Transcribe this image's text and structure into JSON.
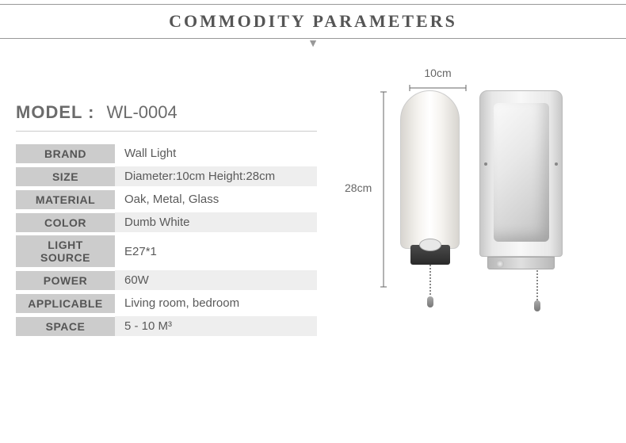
{
  "header": {
    "title": "COMMODITY PARAMETERS"
  },
  "model": {
    "label": "MODEL :",
    "value": "WL-0004"
  },
  "specs": [
    {
      "label": "BRAND",
      "value": "Wall Light",
      "alt": false
    },
    {
      "label": "SIZE",
      "value": "Diameter:10cm Height:28cm",
      "alt": true
    },
    {
      "label": "MATERIAL",
      "value": "Oak, Metal, Glass",
      "alt": false
    },
    {
      "label": "COLOR",
      "value": "Dumb White",
      "alt": true
    },
    {
      "label": "LIGHT SOURCE",
      "value": "E27*1",
      "alt": false
    },
    {
      "label": "POWER",
      "value": "60W",
      "alt": true
    },
    {
      "label": "APPLICABLE",
      "value": "Living room, bedroom",
      "alt": false
    },
    {
      "label": "SPACE",
      "value": "5 - 10 M³",
      "alt": true
    }
  ],
  "dimensions": {
    "width": "10cm",
    "height": "28cm"
  },
  "colors": {
    "header_border": "#999999",
    "header_text": "#555555",
    "label_bg": "#cccccc",
    "label_text": "#555555",
    "value_text": "#5a5a5a",
    "alt_bg": "#eeeeee",
    "model_text": "#6b6b6b"
  }
}
